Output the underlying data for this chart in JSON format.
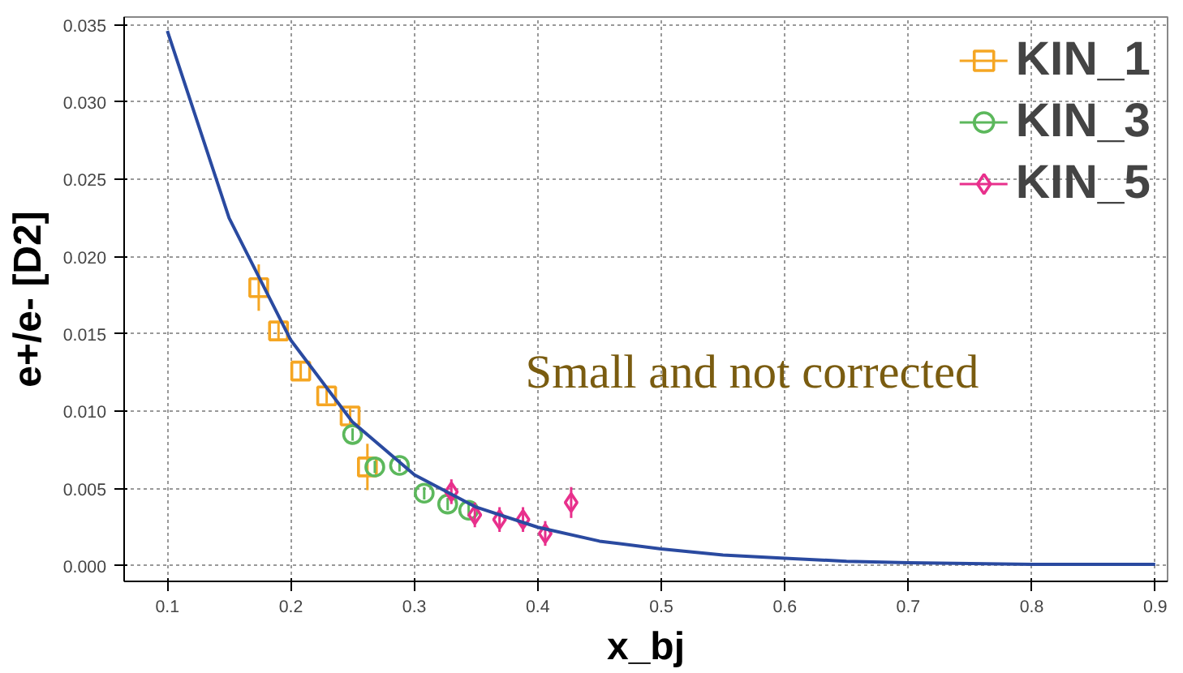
{
  "chart_data": {
    "type": "scatter",
    "xlabel": "x_bj",
    "ylabel": "e+/e- [D2]",
    "xlim": [
      0.065,
      0.91
    ],
    "ylim": [
      -0.001,
      0.0355
    ],
    "xticks": [
      0.1,
      0.2,
      0.3,
      0.4,
      0.5,
      0.6,
      0.7,
      0.8,
      0.9
    ],
    "yticks": [
      {
        "value": 0,
        "label": "0.000"
      },
      {
        "value": 0.005,
        "label": "0.005"
      },
      {
        "value": 0.01,
        "label": "0.010"
      },
      {
        "value": 0.015,
        "label": "0.015"
      },
      {
        "value": 0.02,
        "label": "0.020"
      },
      {
        "value": 0.025,
        "label": "0.025"
      },
      {
        "value": 0.03,
        "label": "0.030"
      },
      {
        "value": 0.035,
        "label": "0.035"
      }
    ],
    "grid": true,
    "legend": "top right",
    "annotations": [
      "Small and not corrected"
    ],
    "series": [
      {
        "name": "KIN_1",
        "color": "#f5a623",
        "marker": "square",
        "x": [
          0.174,
          0.19,
          0.208,
          0.229,
          0.248,
          0.262
        ],
        "values": [
          0.018,
          0.0152,
          0.0126,
          0.011,
          0.0097,
          0.0064
        ],
        "errors": [
          0.0015,
          0.0006,
          0.0005,
          0.0005,
          0.0005,
          0.0015
        ]
      },
      {
        "name": "KIN_3",
        "color": "#5cb85c",
        "marker": "circle",
        "x": [
          0.25,
          0.268,
          0.288,
          0.308,
          0.327,
          0.344
        ],
        "values": [
          0.0085,
          0.0064,
          0.0065,
          0.0047,
          0.004,
          0.0036
        ],
        "errors": [
          0.0004,
          0.0004,
          0.0004,
          0.0004,
          0.0004,
          0.0004
        ]
      },
      {
        "name": "KIN_5",
        "color": "#e8308c",
        "marker": "diamond",
        "x": [
          0.33,
          0.349,
          0.369,
          0.388,
          0.406,
          0.427
        ],
        "values": [
          0.0048,
          0.0033,
          0.003,
          0.003,
          0.0021,
          0.0041
        ],
        "errors": [
          0.0008,
          0.0008,
          0.0008,
          0.0008,
          0.0008,
          0.001
        ]
      },
      {
        "type": "line",
        "color": "#2a4aa0",
        "marker": "none",
        "x": [
          0.1,
          0.15,
          0.2,
          0.25,
          0.3,
          0.35,
          0.4,
          0.45,
          0.5,
          0.55,
          0.6,
          0.65,
          0.7,
          0.8,
          0.9
        ],
        "values": [
          0.0346,
          0.0225,
          0.0146,
          0.0093,
          0.0059,
          0.0038,
          0.0025,
          0.0016,
          0.0011,
          0.0007,
          0.0005,
          0.0003,
          0.0002,
          0.0001,
          0.0001
        ]
      }
    ]
  }
}
